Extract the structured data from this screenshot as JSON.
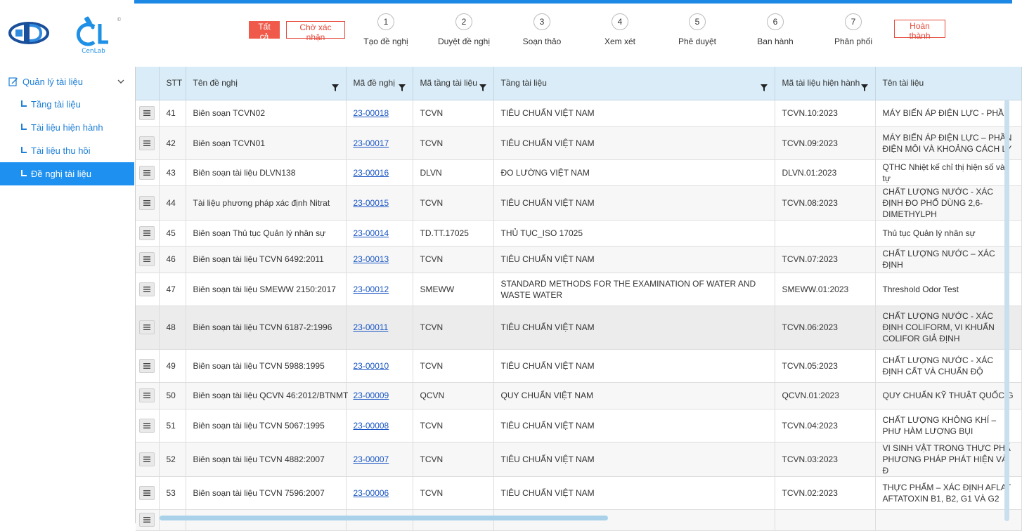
{
  "brand": {
    "logo_caption": "CenLab"
  },
  "sidebar": {
    "group_label": "Quản lý tài liệu",
    "items": [
      {
        "label": "Tầng tài liệu"
      },
      {
        "label": "Tài liệu hiện hành"
      },
      {
        "label": "Tài liệu thu hồi"
      },
      {
        "label": "Đề nghị tài liệu"
      }
    ]
  },
  "workflow": {
    "all_label": "Tất cả",
    "waiting_label": "Chờ xác nhận",
    "done_label": "Hoàn thành",
    "steps": [
      {
        "num": "1",
        "label": "Tạo đề nghị"
      },
      {
        "num": "2",
        "label": "Duyệt đề nghị"
      },
      {
        "num": "3",
        "label": "Soạn thảo"
      },
      {
        "num": "4",
        "label": "Xem xét"
      },
      {
        "num": "5",
        "label": "Phê duyệt"
      },
      {
        "num": "6",
        "label": "Ban hành"
      },
      {
        "num": "7",
        "label": "Phân phối"
      }
    ]
  },
  "table": {
    "columns": [
      "",
      "STT",
      "Tên đề nghị",
      "Mã đề nghị",
      "Mã tầng tài liệu",
      "Tầng tài liệu",
      "Mã tài liệu hiện hành",
      "Tên tài liệu"
    ],
    "rows": [
      {
        "stt": "41",
        "name": "Biên soạn TCVN02",
        "code": "23-00018",
        "tier_code": "TCVN",
        "tier": "TIÊU CHUẨN VIỆT NAM",
        "cur_code": "TCVN.10:2023",
        "doc": "MÁY BIẾN ÁP ĐIỆN LỰC - PHẦN"
      },
      {
        "stt": "42",
        "name": "Biên soạn TCVN01",
        "code": "23-00017",
        "tier_code": "TCVN",
        "tier": "TIÊU CHUẨN VIỆT NAM",
        "cur_code": "TCVN.09:2023",
        "doc": "MÁY BIẾN ÁP ĐIỆN LỰC – PHẦN ĐIỆN MÔI VÀ KHOẢNG CÁCH LY"
      },
      {
        "stt": "43",
        "name": "Biên soạn tài liệu DLVN138",
        "code": "23-00016",
        "tier_code": "DLVN",
        "tier": "ĐO LƯỜNG VIỆT NAM",
        "cur_code": "DLVN.01:2023",
        "doc": "QTHC Nhiệt kế chỉ thị hiện số và tự"
      },
      {
        "stt": "44",
        "name": "Tài liệu phương pháp xác định Nitrat",
        "code": "23-00015",
        "tier_code": "TCVN",
        "tier": "TIÊU CHUẨN VIỆT NAM",
        "cur_code": "TCVN.08:2023",
        "doc": "CHẤT LƯỢNG NƯỚC - XÁC ĐỊNH ĐO PHỔ DÙNG 2,6-DIMETHYLPH"
      },
      {
        "stt": "45",
        "name": "Biên soạn Thủ tục Quản lý nhân sự",
        "code": "23-00014",
        "tier_code": "TD.TT.17025",
        "tier": "THỦ TỤC_ISO 17025",
        "cur_code": "",
        "doc": "Thủ tục Quản lý nhân sự"
      },
      {
        "stt": "46",
        "name": "Biên soạn tài liệu TCVN 6492:2011",
        "code": "23-00013",
        "tier_code": "TCVN",
        "tier": "TIÊU CHUẨN VIỆT NAM",
        "cur_code": "TCVN.07:2023",
        "doc": "CHẤT LƯỢNG NƯỚC – XÁC ĐỊNH"
      },
      {
        "stt": "47",
        "name": "Biên soạn tài liệu SMEWW 2150:2017",
        "code": "23-00012",
        "tier_code": "SMEWW",
        "tier": "STANDARD METHODS FOR THE EXAMINATION OF WATER AND WASTE WATER",
        "cur_code": "SMEWW.01:2023",
        "doc": "Threshold Odor Test"
      },
      {
        "stt": "48",
        "name": "Biên soạn tài liệu TCVN 6187-2:1996",
        "code": "23-00011",
        "tier_code": "TCVN",
        "tier": "TIÊU CHUẨN VIỆT NAM",
        "cur_code": "TCVN.06:2023",
        "doc": "CHẤT LƯỢNG NƯỚC - XÁC ĐỊNH COLIFORM, VI KHUẨN COLIFOR GIẢ ĐỊNH"
      },
      {
        "stt": "49",
        "name": "Biên soạn tài liệu TCVN 5988:1995",
        "code": "23-00010",
        "tier_code": "TCVN",
        "tier": "TIÊU CHUẨN VIỆT NAM",
        "cur_code": "TCVN.05:2023",
        "doc": "CHẤT LƯỢNG NƯỚC - XÁC ĐỊNH CẤT VÀ CHUẨN ĐỘ"
      },
      {
        "stt": "50",
        "name": "Biên soạn tài liệu QCVN 46:2012/BTNMT",
        "code": "23-00009",
        "tier_code": "QCVN",
        "tier": "QUY CHUẨN VIỆT NAM",
        "cur_code": "QCVN.01:2023",
        "doc": "QUY CHUẨN KỸ THUẬT QUỐC G"
      },
      {
        "stt": "51",
        "name": "Biên soạn tài liệu TCVN 5067:1995",
        "code": "23-00008",
        "tier_code": "TCVN",
        "tier": "TIÊU CHUẨN VIỆT NAM",
        "cur_code": "TCVN.04:2023",
        "doc": "CHẤT LƯỢNG KHÔNG KHÍ – PHƯ HÀM LƯỢNG BỤI"
      },
      {
        "stt": "52",
        "name": "Biên soạn tài liệu TCVN 4882:2007",
        "code": "23-00007",
        "tier_code": "TCVN",
        "tier": "TIÊU CHUẨN VIỆT NAM",
        "cur_code": "TCVN.03:2023",
        "doc": "VI SINH VẬT TRONG THỰC PHẨ PHƯƠNG PHÁP PHÁT HIỆN VÀ Đ"
      },
      {
        "stt": "53",
        "name": "Biên soạn tài liệu TCVN 7596:2007",
        "code": "23-00006",
        "tier_code": "TCVN",
        "tier": "TIÊU CHUẨN VIỆT NAM",
        "cur_code": "TCVN.02:2023",
        "doc": "THỰC PHẨM – XÁC ĐỊNH AFLAT AFTATOXIN B1, B2, G1 VÀ G2"
      },
      {
        "stt": "",
        "name": "",
        "code": "",
        "tier_code": "",
        "tier": "",
        "cur_code": "",
        "doc": ""
      }
    ]
  }
}
